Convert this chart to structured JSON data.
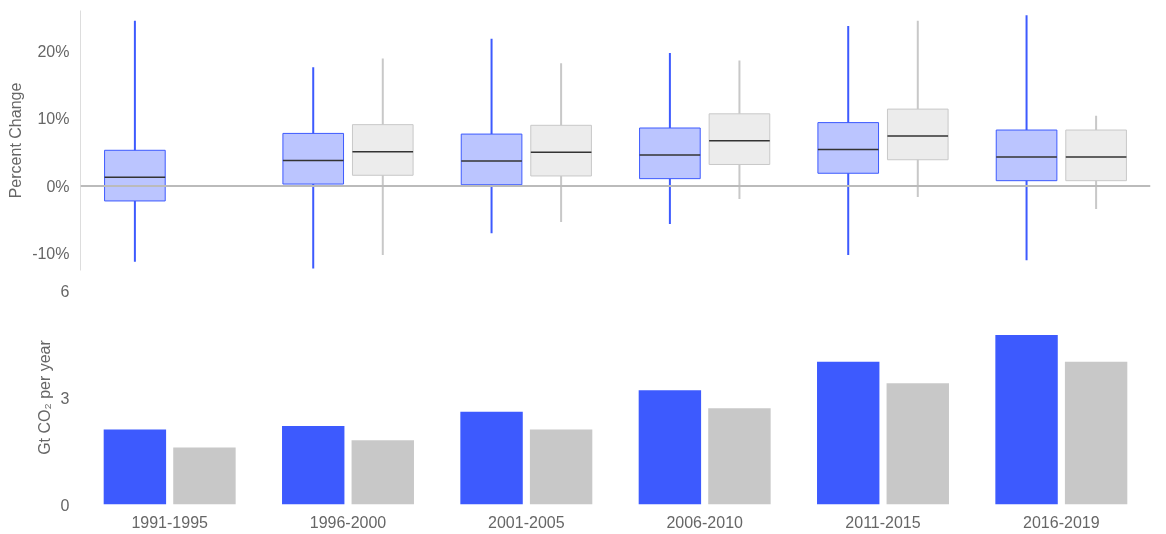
{
  "chart_data": [
    {
      "type": "box",
      "ylabel": "Percent Change",
      "categories": [
        null,
        null,
        null,
        null,
        null,
        null
      ],
      "tick_labels": "y",
      "grid": false,
      "ylim": [
        -12.5,
        26
      ],
      "yticks": [
        {
          "value": -10,
          "label": "-10%"
        },
        {
          "value": 0,
          "label": "0%"
        },
        {
          "value": 10,
          "label": "10%"
        },
        {
          "value": 20,
          "label": "20%"
        }
      ],
      "ref_lines": [
        {
          "axis": "y",
          "value": 0,
          "label": null,
          "color": "#bbbbbb"
        }
      ],
      "series": [
        {
          "color": "#3d5afe",
          "boxes": [
            {
              "low": -11.2,
              "q1": -2.2,
              "median": 1.3,
              "q3": 5.3,
              "high": 24.5
            },
            {
              "low": -12.2,
              "q1": 0.3,
              "median": 3.8,
              "q3": 7.8,
              "high": 17.6
            },
            {
              "low": -7,
              "q1": 0.2,
              "median": 3.7,
              "q3": 7.7,
              "high": 21.8
            },
            {
              "low": -5.6,
              "q1": 1.1,
              "median": 4.6,
              "q3": 8.6,
              "high": 19.7
            },
            {
              "low": -10.2,
              "q1": 1.9,
              "median": 5.4,
              "q3": 9.4,
              "high": 23.7
            },
            {
              "low": -11,
              "q1": 0.8,
              "median": 4.3,
              "q3": 8.3,
              "high": 25.3
            }
          ]
        },
        {
          "color": "#c8c8c8",
          "boxes": [
            null,
            {
              "low": -10.2,
              "q1": 1.6,
              "median": 5.1,
              "q3": 9.1,
              "high": 18.9
            },
            {
              "low": -5.3,
              "q1": 1.5,
              "median": 5,
              "q3": 9,
              "high": 18.2
            },
            {
              "low": -1.9,
              "q1": 3.2,
              "median": 6.7,
              "q3": 10.7,
              "high": 18.6
            },
            {
              "low": -1.6,
              "q1": 3.9,
              "median": 7.4,
              "q3": 11.4,
              "high": 24.5
            },
            {
              "low": -3.4,
              "q1": 0.8,
              "median": 4.3,
              "q3": 8.3,
              "high": 10.4
            }
          ]
        }
      ]
    },
    {
      "type": "bar",
      "ylabel": "Gt CO₂ per year",
      "categories": [
        "1991-1995",
        "1996-2000",
        "2001-2005",
        "2006-2010",
        "2011-2015",
        "2016-2019"
      ],
      "grid": false,
      "ylim": [
        0,
        6
      ],
      "yticks": [
        0,
        3,
        6
      ],
      "series": [
        {
          "color": "#3d5afe",
          "values": [
            2.1,
            2.2,
            2.6,
            3.2,
            4.0,
            4.75
          ]
        },
        {
          "color": "#c8c8c8",
          "values": [
            1.6,
            1.8,
            2.1,
            2.7,
            3.4,
            4.0
          ]
        }
      ]
    }
  ]
}
